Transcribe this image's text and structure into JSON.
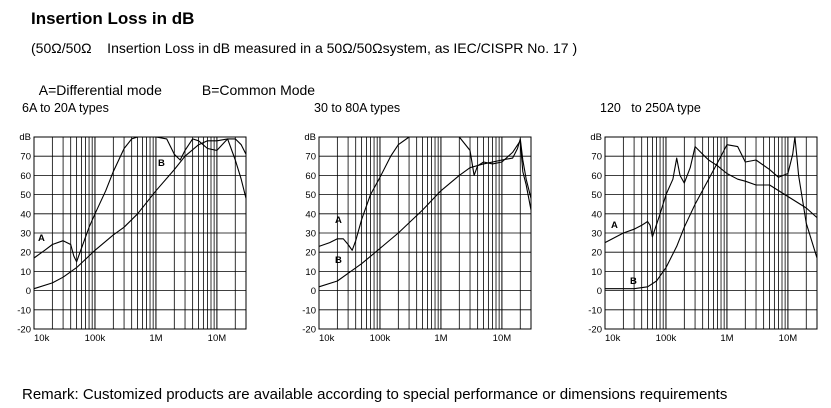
{
  "title": "Insertion Loss in dB",
  "subtitle": "(50Ω/50Ω    Insertion Loss in dB measured in a 50Ω/50Ωsystem, as IEC/CISPR No. 17 )",
  "modes": {
    "a": "A=Differential mode",
    "b": "B=Common Mode"
  },
  "remark": "Remark: Customized products are available according to special performance or dimensions requirements",
  "chart_data": [
    {
      "type": "line",
      "title": "6A to 20A types",
      "ylabel": "dB",
      "xscale": "log",
      "xlim": [
        10000,
        30000000
      ],
      "ylim": [
        -20,
        80
      ],
      "yticks": [
        "70",
        "60",
        "50",
        "40",
        "30",
        "20",
        "10",
        "0",
        "-10",
        "-20"
      ],
      "xticks": [
        "10k",
        "100k",
        "1M",
        "10M"
      ],
      "grid": true,
      "series": [
        {
          "name": "A",
          "x": [
            10000,
            15000,
            20000,
            30000,
            40000,
            45000,
            50000,
            60000,
            80000,
            100000,
            150000,
            200000,
            300000,
            400000,
            500000,
            600000,
            700000,
            1000000,
            1500000,
            2000000,
            2500000,
            3000000,
            4000000,
            5000000,
            7000000,
            10000000,
            15000000,
            20000000,
            25000000,
            30000000
          ],
          "y": [
            17,
            21,
            24,
            26,
            24,
            18,
            15,
            22,
            33,
            40,
            52,
            62,
            74,
            79,
            80,
            80,
            80,
            80,
            79,
            71,
            68,
            73,
            79,
            78,
            74,
            73,
            79,
            68,
            58,
            48
          ]
        },
        {
          "name": "B",
          "x": [
            10000,
            20000,
            30000,
            50000,
            100000,
            200000,
            300000,
            500000,
            1000000,
            2000000,
            3000000,
            5000000,
            7000000,
            10000000,
            15000000,
            20000000,
            25000000,
            30000000
          ],
          "y": [
            1,
            4,
            7,
            12,
            21,
            29,
            33,
            40,
            52,
            63,
            70,
            76,
            78,
            78,
            79,
            79,
            76,
            71
          ]
        }
      ]
    },
    {
      "type": "line",
      "title": "30 to 80A types",
      "ylabel": "dB",
      "xscale": "log",
      "xlim": [
        10000,
        30000000
      ],
      "ylim": [
        -20,
        80
      ],
      "yticks": [
        "70",
        "60",
        "50",
        "40",
        "30",
        "20",
        "10",
        "0",
        "-10",
        "-20"
      ],
      "xticks": [
        "10k",
        "100k",
        "1M",
        "10M"
      ],
      "grid": true,
      "series": [
        {
          "name": "A",
          "x": [
            10000,
            15000,
            20000,
            25000,
            30000,
            35000,
            40000,
            50000,
            70000,
            100000,
            150000,
            200000,
            300000,
            400000,
            500000,
            1000000,
            2000000,
            3000000,
            3500000,
            4000000,
            5000000,
            7000000,
            10000000,
            15000000,
            20000000,
            22000000,
            25000000,
            30000000
          ],
          "y": [
            23,
            25,
            27,
            27,
            24,
            21,
            26,
            37,
            50,
            59,
            70,
            76,
            80,
            80,
            80,
            80,
            80,
            73,
            60,
            65,
            67,
            66,
            67,
            72,
            78,
            62,
            55,
            42
          ]
        },
        {
          "name": "B",
          "x": [
            10000,
            20000,
            30000,
            50000,
            100000,
            200000,
            500000,
            1000000,
            2000000,
            3000000,
            5000000,
            10000000,
            15000000,
            18000000,
            20000000,
            22000000,
            25000000,
            30000000
          ],
          "y": [
            2,
            5,
            9,
            14,
            22,
            30,
            42,
            52,
            60,
            64,
            66,
            68,
            69,
            74,
            79,
            68,
            58,
            48
          ]
        }
      ]
    },
    {
      "type": "line",
      "title": "120   to 250A type",
      "ylabel": "dB",
      "xscale": "log",
      "xlim": [
        10000,
        30000000
      ],
      "ylim": [
        -20,
        80
      ],
      "yticks": [
        "70",
        "60",
        "50",
        "40",
        "30",
        "20",
        "10",
        "0",
        "-10",
        "-20"
      ],
      "xticks": [
        "10k",
        "100k",
        "1M",
        "10M"
      ],
      "grid": true,
      "series": [
        {
          "name": "A",
          "x": [
            10000,
            20000,
            30000,
            40000,
            50000,
            55000,
            60000,
            80000,
            100000,
            130000,
            150000,
            170000,
            200000,
            250000,
            300000,
            400000,
            500000,
            700000,
            1000000,
            1500000,
            2000000,
            3000000,
            5000000,
            10000000,
            20000000,
            30000000
          ],
          "y": [
            25,
            30,
            32,
            34,
            36,
            34,
            28,
            40,
            50,
            58,
            69,
            60,
            56,
            64,
            75,
            71,
            68,
            65,
            61,
            58,
            57,
            55,
            55,
            49,
            43,
            38
          ]
        },
        {
          "name": "B",
          "x": [
            10000,
            30000,
            50000,
            70000,
            100000,
            150000,
            200000,
            300000,
            500000,
            800000,
            1000000,
            1500000,
            2000000,
            3000000,
            5000000,
            7000000,
            10000000,
            12000000,
            13000000,
            14000000,
            15000000,
            20000000,
            30000000
          ],
          "y": [
            1,
            1,
            2,
            5,
            12,
            23,
            33,
            45,
            58,
            70,
            76,
            75,
            67,
            68,
            63,
            59,
            61,
            71,
            80,
            70,
            60,
            35,
            17
          ]
        }
      ]
    }
  ]
}
